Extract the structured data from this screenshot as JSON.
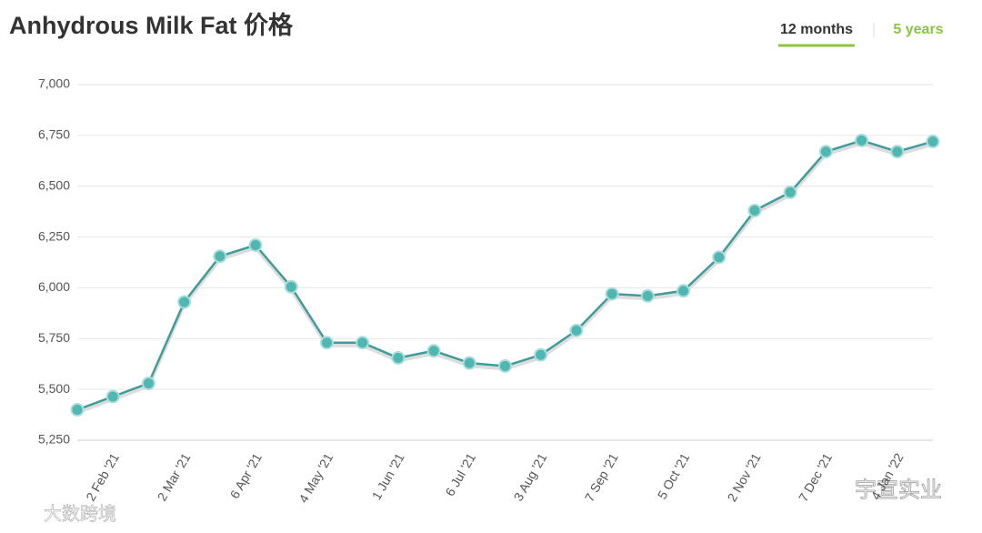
{
  "header": {
    "tabs": [
      "12 months",
      "5 years"
    ]
  },
  "watermarks": [
    "大数跨境",
    "宇宣实业"
  ],
  "chart_data": {
    "type": "line",
    "title": "Anhydrous Milk Fat 价格",
    "categories": [
      null,
      "2 Feb '21",
      null,
      "2 Mar '21",
      null,
      "6 Apr '21",
      null,
      "4 May '21",
      null,
      "1 Jun '21",
      null,
      "6 Jul '21",
      null,
      "3 Aug '21",
      null,
      "7 Sep '21",
      null,
      "5 Oct '21",
      null,
      "2 Nov '21",
      null,
      "7 Dec '21",
      null,
      "4 Jan '22",
      null
    ],
    "series": [
      {
        "name": "Anhydrous Milk Fat",
        "color": "#3f9c9a",
        "values": [
          5400,
          5465,
          5530,
          5930,
          6155,
          6210,
          6005,
          5730,
          5730,
          5655,
          5690,
          5630,
          5615,
          5670,
          5790,
          5970,
          5960,
          5985,
          6150,
          6380,
          6470,
          6670,
          6725,
          6670,
          6720
        ]
      }
    ],
    "ylim": [
      5250,
      7000
    ],
    "yticks": [
      {
        "value": 5250,
        "label": "5,250"
      },
      {
        "value": 5500,
        "label": "5,500"
      },
      {
        "value": 5750,
        "label": "5,750"
      },
      {
        "value": 6000,
        "label": "6,000"
      },
      {
        "value": 6250,
        "label": "6,250"
      },
      {
        "value": 6500,
        "label": "6,500"
      },
      {
        "value": 6750,
        "label": "6,750"
      },
      {
        "value": 7000,
        "label": "7,000"
      }
    ],
    "grid": true
  }
}
